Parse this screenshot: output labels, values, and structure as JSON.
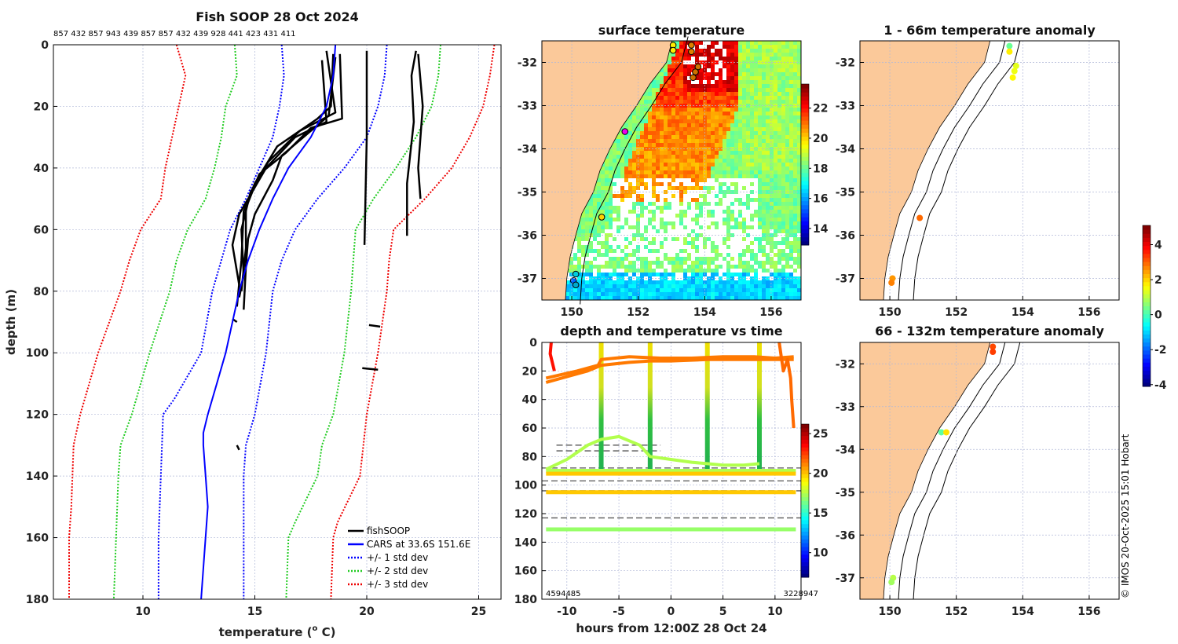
{
  "chart_data": [
    {
      "type": "line",
      "title": "Fish SOOP 28 Oct 2024",
      "subtitle": "857 432 857 943 439 857 857 432 439 928 441 423 431 411",
      "xlabel_pre": "temperature (",
      "xlabel_sup": "o",
      "xlabel_post": " C)",
      "ylabel": "depth (m)",
      "xlim": [
        6,
        26
      ],
      "ylim": [
        0,
        180
      ],
      "y_reversed": true,
      "grid": true,
      "xticks": [
        10,
        15,
        20,
        25
      ],
      "yticks": [
        0,
        20,
        40,
        60,
        80,
        100,
        120,
        140,
        160,
        180
      ],
      "legend_position": "bottom-right",
      "legend": [
        "fishSOOP",
        "CARS at 33.6S 151.6E",
        "+/- 1 std dev",
        "+/- 2 std dev",
        "+/- 3 std dev"
      ],
      "colors": {
        "fishSOOP": "#000000",
        "cars": "#0000ff",
        "std1": "#0000ff",
        "std2": "#22cc22",
        "std3": "#ee0000"
      },
      "cars_mean": [
        [
          18.6,
          0
        ],
        [
          18.5,
          10
        ],
        [
          18.2,
          20
        ],
        [
          17.5,
          30
        ],
        [
          16.5,
          40
        ],
        [
          15.8,
          50
        ],
        [
          15.2,
          60
        ],
        [
          14.7,
          70
        ],
        [
          14.3,
          80
        ],
        [
          14.0,
          90
        ],
        [
          13.7,
          100
        ],
        [
          13.3,
          110
        ],
        [
          12.9,
          120
        ],
        [
          12.7,
          126
        ],
        [
          12.7,
          130
        ],
        [
          12.8,
          140
        ],
        [
          12.9,
          150
        ],
        [
          12.7,
          170
        ],
        [
          12.6,
          180
        ]
      ],
      "std1_plus": [
        [
          20.9,
          0
        ],
        [
          20.8,
          10
        ],
        [
          20.5,
          20
        ],
        [
          20.0,
          30
        ],
        [
          19.0,
          40
        ],
        [
          17.8,
          50
        ],
        [
          16.8,
          60
        ],
        [
          16.2,
          70
        ],
        [
          15.8,
          80
        ],
        [
          15.5,
          100
        ],
        [
          15.0,
          120
        ],
        [
          14.6,
          130
        ],
        [
          14.5,
          140
        ],
        [
          14.5,
          160
        ],
        [
          14.5,
          180
        ]
      ],
      "std1_minus": [
        [
          16.2,
          0
        ],
        [
          16.3,
          10
        ],
        [
          16.1,
          20
        ],
        [
          15.8,
          30
        ],
        [
          15.2,
          40
        ],
        [
          14.6,
          50
        ],
        [
          13.9,
          60
        ],
        [
          13.5,
          70
        ],
        [
          13.1,
          80
        ],
        [
          12.6,
          100
        ],
        [
          11.4,
          115
        ],
        [
          10.9,
          120
        ],
        [
          10.8,
          140
        ],
        [
          10.7,
          160
        ],
        [
          10.7,
          180
        ]
      ],
      "std2_plus": [
        [
          23.3,
          0
        ],
        [
          23.2,
          10
        ],
        [
          22.9,
          20
        ],
        [
          22.2,
          30
        ],
        [
          21.3,
          40
        ],
        [
          20.3,
          50
        ],
        [
          19.5,
          60
        ],
        [
          19.4,
          70
        ],
        [
          19.3,
          80
        ],
        [
          19.0,
          100
        ],
        [
          18.5,
          120
        ],
        [
          18.0,
          130
        ],
        [
          17.8,
          140
        ],
        [
          16.8,
          155
        ],
        [
          16.5,
          160
        ],
        [
          16.4,
          180
        ]
      ],
      "std2_minus": [
        [
          14.1,
          0
        ],
        [
          14.2,
          10
        ],
        [
          13.7,
          20
        ],
        [
          13.5,
          30
        ],
        [
          13.2,
          40
        ],
        [
          12.8,
          50
        ],
        [
          12.0,
          60
        ],
        [
          11.5,
          70
        ],
        [
          11.2,
          80
        ],
        [
          10.3,
          100
        ],
        [
          9.5,
          120
        ],
        [
          9.0,
          130
        ],
        [
          8.9,
          140
        ],
        [
          8.8,
          160
        ],
        [
          8.7,
          180
        ]
      ],
      "std3_plus": [
        [
          25.7,
          0
        ],
        [
          25.5,
          10
        ],
        [
          25.2,
          20
        ],
        [
          24.6,
          30
        ],
        [
          23.8,
          40
        ],
        [
          22.6,
          50
        ],
        [
          21.2,
          60
        ],
        [
          21.0,
          70
        ],
        [
          20.9,
          80
        ],
        [
          20.5,
          100
        ],
        [
          20.0,
          120
        ],
        [
          19.7,
          140
        ],
        [
          18.7,
          155
        ],
        [
          18.5,
          160
        ],
        [
          18.4,
          180
        ]
      ],
      "std3_minus": [
        [
          11.5,
          0
        ],
        [
          11.9,
          10
        ],
        [
          11.6,
          20
        ],
        [
          11.3,
          30
        ],
        [
          11.0,
          40
        ],
        [
          10.8,
          50
        ],
        [
          9.9,
          60
        ],
        [
          9.4,
          70
        ],
        [
          9.0,
          80
        ],
        [
          8.0,
          100
        ],
        [
          7.2,
          120
        ],
        [
          6.9,
          130
        ],
        [
          6.8,
          150
        ],
        [
          6.7,
          160
        ],
        [
          6.7,
          180
        ]
      ],
      "fishsoop_profiles": [
        [
          [
            18.5,
            3
          ],
          [
            18.4,
            20
          ],
          [
            17.8,
            24
          ],
          [
            16.0,
            33
          ],
          [
            15.0,
            45
          ],
          [
            14.5,
            54
          ],
          [
            14.4,
            70
          ],
          [
            14.2,
            85
          ]
        ],
        [
          [
            18.2,
            2
          ],
          [
            18.6,
            22
          ],
          [
            17.0,
            28
          ],
          [
            15.6,
            38
          ],
          [
            14.8,
            48
          ],
          [
            14.4,
            60
          ],
          [
            14.5,
            75
          ],
          [
            14.3,
            82
          ]
        ],
        [
          [
            18.8,
            3
          ],
          [
            18.9,
            24
          ],
          [
            17.5,
            27
          ],
          [
            16.4,
            35
          ],
          [
            15.2,
            42
          ],
          [
            14.6,
            53
          ],
          [
            14.6,
            66
          ],
          [
            14.4,
            80
          ]
        ],
        [
          [
            18.0,
            5
          ],
          [
            18.2,
            25
          ],
          [
            16.8,
            30
          ],
          [
            15.5,
            40
          ],
          [
            14.3,
            55
          ],
          [
            14.0,
            65
          ],
          [
            14.3,
            78
          ]
        ],
        [
          [
            18.6,
            4
          ],
          [
            18.3,
            23
          ],
          [
            16.2,
            36
          ],
          [
            15.8,
            44
          ],
          [
            15.0,
            55
          ],
          [
            14.7,
            63
          ],
          [
            14.6,
            72
          ],
          [
            14.5,
            86
          ]
        ],
        [
          [
            20.0,
            2
          ],
          [
            20.0,
            30
          ],
          [
            19.9,
            65
          ]
        ],
        [
          [
            22.2,
            2
          ],
          [
            22.0,
            10
          ],
          [
            22.1,
            25
          ],
          [
            21.8,
            45
          ],
          [
            21.8,
            62
          ]
        ],
        [
          [
            22.3,
            3
          ],
          [
            22.5,
            20
          ],
          [
            22.3,
            40
          ],
          [
            22.4,
            50
          ]
        ],
        [
          [
            20.1,
            91
          ],
          [
            20.6,
            91.5
          ]
        ],
        [
          [
            19.8,
            105
          ],
          [
            20.5,
            105.5
          ]
        ],
        [
          [
            14.0,
            89
          ],
          [
            14.2,
            90
          ]
        ],
        [
          [
            14.2,
            130
          ],
          [
            14.3,
            131.5
          ]
        ]
      ]
    },
    {
      "type": "heatmap",
      "title": "surface temperature",
      "xlim": [
        149.1,
        156.9
      ],
      "ylim": [
        -37.5,
        -31.5
      ],
      "xticks": [
        150,
        152,
        154,
        156
      ],
      "yticks": [
        -32,
        -33,
        -34,
        -35,
        -36,
        -37
      ],
      "colorbar": {
        "range": [
          12.9,
          23.6
        ],
        "ticks": [
          14,
          16,
          18,
          20,
          22
        ]
      },
      "markers": [
        {
          "lon": 153.05,
          "lat": -31.6,
          "color": "#ffee00"
        },
        {
          "lon": 153.05,
          "lat": -31.72,
          "color": "#ffee00"
        },
        {
          "lon": 153.6,
          "lat": -31.6,
          "color": "#e08000"
        },
        {
          "lon": 153.6,
          "lat": -31.75,
          "color": "#e08000"
        },
        {
          "lon": 153.8,
          "lat": -32.1,
          "color": "#d07000"
        },
        {
          "lon": 153.72,
          "lat": -32.22,
          "color": "#d07000"
        },
        {
          "lon": 153.65,
          "lat": -32.35,
          "color": "#d07000"
        },
        {
          "lon": 151.6,
          "lat": -33.6,
          "color": "#ee00ee"
        },
        {
          "lon": 150.9,
          "lat": -35.58,
          "color": "#ffd000"
        },
        {
          "lon": 150.12,
          "lat": -36.9,
          "color": "#00ccdd"
        },
        {
          "lon": 150.05,
          "lat": -37.05,
          "color": "#0066ff"
        },
        {
          "lon": 150.12,
          "lat": -37.15,
          "color": "#00aacc"
        }
      ]
    },
    {
      "type": "scatter",
      "title": "depth and temperature vs time",
      "xlabel": "hours from 12:00Z 28 Oct 24",
      "xlim": [
        -12.4,
        12.5
      ],
      "ylim": [
        0,
        180
      ],
      "y_reversed": true,
      "xticks": [
        -10,
        -5,
        0,
        5,
        10
      ],
      "yticks": [
        0,
        20,
        40,
        60,
        80,
        100,
        120,
        140,
        160,
        180
      ],
      "corner_labels": [
        "4594485",
        "3228947"
      ],
      "colorbar": {
        "range": [
          6.9,
          26.2
        ],
        "ticks": [
          10,
          15,
          20,
          25
        ]
      },
      "dashed_depths": [
        72,
        76,
        88,
        97,
        104,
        123
      ],
      "tracks": [
        {
          "temp": 21.5,
          "points": [
            [
              -12,
              28
            ],
            [
              -10,
              24
            ],
            [
              -8,
              20
            ],
            [
              -6.7,
              16
            ],
            [
              -4,
              14
            ],
            [
              -2,
              13
            ],
            [
              0,
              13
            ],
            [
              3.5,
              12
            ],
            [
              6,
              12
            ],
            [
              8.5,
              12
            ],
            [
              11.8,
              12
            ]
          ]
        },
        {
          "temp": 21.5,
          "points": [
            [
              -12,
              25
            ],
            [
              -9,
              20
            ],
            [
              -7,
              16
            ],
            [
              -6.7,
              12
            ],
            [
              -4,
              10
            ],
            [
              -1,
              11
            ],
            [
              2,
              11
            ],
            [
              5,
              10
            ],
            [
              8,
              10
            ],
            [
              10,
              11
            ],
            [
              11.8,
              10
            ]
          ]
        },
        {
          "temp": 21.8,
          "points": [
            [
              10.4,
              0
            ],
            [
              10.6,
              10
            ],
            [
              10.8,
              20
            ],
            [
              11.2,
              12
            ],
            [
              11.5,
              25
            ],
            [
              11.6,
              40
            ],
            [
              11.8,
              60
            ]
          ]
        },
        {
          "temp": 23.5,
          "points": [
            [
              -11.5,
              0
            ],
            [
              -11.6,
              8
            ],
            [
              -11.2,
              20
            ]
          ]
        },
        {
          "temp": 17.5,
          "points": [
            [
              -12,
              89
            ],
            [
              -10,
              82
            ],
            [
              -8,
              72
            ],
            [
              -6.7,
              68
            ],
            [
              -5,
              66
            ],
            [
              -3,
              72
            ],
            [
              -2,
              80
            ],
            [
              0,
              82
            ],
            [
              2,
              84
            ],
            [
              3.5,
              85
            ],
            [
              5,
              86
            ],
            [
              7,
              86
            ],
            [
              8.5,
              85
            ]
          ]
        },
        {
          "temp": 17.5,
          "points": [
            [
              -12,
              90
            ],
            [
              12,
              90
            ]
          ]
        },
        {
          "temp": 20.0,
          "points": [
            [
              -12,
              92
            ],
            [
              12,
              92
            ]
          ]
        },
        {
          "temp": 20.0,
          "points": [
            [
              -12,
              105
            ],
            [
              12,
              105
            ]
          ]
        },
        {
          "temp": 17.0,
          "points": [
            [
              -12,
              131
            ],
            [
              12,
              131
            ]
          ]
        }
      ],
      "vertical_casts": [
        -6.7,
        -2.0,
        3.5,
        8.5
      ]
    },
    {
      "type": "scatter",
      "title": "1 - 66m temperature anomaly",
      "xlim": [
        149.1,
        156.9
      ],
      "ylim": [
        -37.5,
        -31.5
      ],
      "xticks": [
        150,
        152,
        154,
        156
      ],
      "yticks": [
        -32,
        -33,
        -34,
        -35,
        -36,
        -37
      ],
      "points": [
        {
          "lon": 153.6,
          "lat": -31.62,
          "anomaly": 0.3
        },
        {
          "lon": 153.6,
          "lat": -31.75,
          "anomaly": 1.8
        },
        {
          "lon": 153.8,
          "lat": -32.08,
          "anomaly": 1.4
        },
        {
          "lon": 153.75,
          "lat": -32.2,
          "anomaly": 1.5
        },
        {
          "lon": 153.7,
          "lat": -32.35,
          "anomaly": 1.7
        },
        {
          "lon": 150.9,
          "lat": -35.6,
          "anomaly": 3.0
        },
        {
          "lon": 150.08,
          "lat": -37.0,
          "anomaly": 2.6
        },
        {
          "lon": 150.05,
          "lat": -37.1,
          "anomaly": 2.8
        }
      ]
    },
    {
      "type": "scatter",
      "title": "66 - 132m temperature anomaly",
      "xlim": [
        149.1,
        156.9
      ],
      "ylim": [
        -37.5,
        -31.5
      ],
      "xticks": [
        150,
        152,
        154,
        156
      ],
      "yticks": [
        -32,
        -33,
        -34,
        -35,
        -36,
        -37
      ],
      "colorbar": {
        "range": [
          -4.1,
          5.1
        ],
        "ticks": [
          4,
          2,
          0,
          -2,
          -4
        ]
      },
      "points": [
        {
          "lon": 153.1,
          "lat": -31.6,
          "anomaly": 3.3
        },
        {
          "lon": 153.1,
          "lat": -31.72,
          "anomaly": 3.4
        },
        {
          "lon": 151.55,
          "lat": -33.6,
          "anomaly": 0.2
        },
        {
          "lon": 151.7,
          "lat": -33.6,
          "anomaly": 1.9
        },
        {
          "lon": 150.1,
          "lat": -37.0,
          "anomaly": 1.0
        },
        {
          "lon": 150.05,
          "lat": -37.1,
          "anomaly": 0.8
        }
      ]
    }
  ],
  "footer": {
    "copyright": "© IMOS 20-Oct-2025 15:01 Hobart"
  },
  "colors": {
    "land": "#fbc99a",
    "grid": "#b0b8d8"
  }
}
